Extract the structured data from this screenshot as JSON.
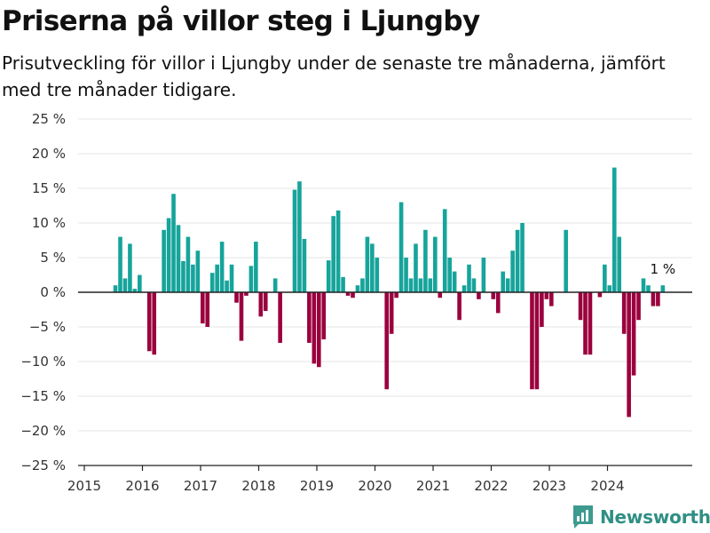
{
  "header": {
    "title": "Priserna på villor steg i Ljungby",
    "subtitle": "Prisutveckling för villor i Ljungby under de senaste tre månaderna, jämfört med tre månader tidigare."
  },
  "brand": {
    "name": "Newsworthy",
    "logo_icon": "bar-chart-logo-icon"
  },
  "chart_data": {
    "type": "bar",
    "unit": "%",
    "y_range": [
      -25,
      25
    ],
    "y_ticks": [
      25,
      20,
      15,
      10,
      5,
      0,
      -5,
      -10,
      -15,
      -20,
      -25
    ],
    "y_tick_labels": [
      "25 %",
      "20 %",
      "15 %",
      "10 %",
      "5 %",
      "0 %",
      "−5 %",
      "−10 %",
      "−15 %",
      "−20 %",
      "−25 %"
    ],
    "x_ticks": [
      "2015",
      "2016",
      "2017",
      "2018",
      "2019",
      "2020",
      "2021",
      "2022",
      "2023",
      "2024"
    ],
    "x_range": [
      "2015-01",
      "2025-08"
    ],
    "grid": "horizontal",
    "colors": {
      "positive": "#16a49b",
      "negative": "#9b003e",
      "zero_line": "#222222",
      "grid": "#e6e6e6"
    },
    "annotation": {
      "text": "1 %",
      "month": "2024-12"
    },
    "months": [
      "2015-07",
      "2015-08",
      "2015-09",
      "2015-10",
      "2015-11",
      "2015-12",
      "2016-01",
      "2016-02",
      "2016-03",
      "2016-04",
      "2016-05",
      "2016-06",
      "2016-07",
      "2016-08",
      "2016-09",
      "2016-10",
      "2016-11",
      "2016-12",
      "2017-01",
      "2017-02",
      "2017-03",
      "2017-04",
      "2017-05",
      "2017-06",
      "2017-07",
      "2017-08",
      "2017-09",
      "2017-10",
      "2017-11",
      "2017-12",
      "2018-01",
      "2018-02",
      "2018-03",
      "2018-04",
      "2018-05",
      "2018-06",
      "2018-07",
      "2018-08",
      "2018-09",
      "2018-10",
      "2018-11",
      "2018-12",
      "2019-01",
      "2019-02",
      "2019-03",
      "2019-04",
      "2019-05",
      "2019-06",
      "2019-07",
      "2019-08",
      "2019-09",
      "2019-10",
      "2019-11",
      "2019-12",
      "2020-01",
      "2020-02",
      "2020-03",
      "2020-04",
      "2020-05",
      "2020-06",
      "2020-07",
      "2020-08",
      "2020-09",
      "2020-10",
      "2020-11",
      "2020-12",
      "2021-01",
      "2021-02",
      "2021-03",
      "2021-04",
      "2021-05",
      "2021-06",
      "2021-07",
      "2021-08",
      "2021-09",
      "2021-10",
      "2021-11",
      "2021-12",
      "2022-01",
      "2022-02",
      "2022-03",
      "2022-04",
      "2022-05",
      "2022-06",
      "2022-07",
      "2022-08",
      "2022-09",
      "2022-10",
      "2022-11",
      "2022-12",
      "2023-01",
      "2023-02",
      "2023-03",
      "2023-04",
      "2023-05",
      "2023-06",
      "2023-07",
      "2023-08",
      "2023-09",
      "2023-10",
      "2023-11",
      "2023-12",
      "2024-01",
      "2024-02",
      "2024-03",
      "2024-04",
      "2024-05",
      "2024-06",
      "2024-07",
      "2024-08",
      "2024-09",
      "2024-10",
      "2024-11",
      "2024-12"
    ],
    "values": [
      1,
      8,
      2,
      7,
      0.5,
      2.5,
      0,
      -8.5,
      -9,
      0,
      9,
      10.7,
      14.2,
      9.7,
      4.5,
      8,
      4,
      6,
      -4.5,
      -5,
      2.8,
      4,
      7.3,
      1.7,
      4,
      -1.5,
      -7,
      -0.5,
      3.8,
      7.3,
      -3.5,
      -2.7,
      0,
      2,
      -7.3,
      0,
      0,
      14.8,
      16,
      7.7,
      -7.3,
      -10.3,
      -10.8,
      -6.8,
      4.6,
      11,
      11.8,
      2.2,
      -0.5,
      -0.8,
      1,
      2,
      8,
      7,
      5,
      0,
      -14,
      -6,
      -0.8,
      13,
      5,
      2,
      7,
      2,
      9,
      2,
      8,
      -0.8,
      12,
      5,
      3,
      -4,
      1,
      4,
      2,
      -1,
      5,
      0,
      -1,
      -3,
      3,
      2,
      6,
      9,
      10,
      0,
      -14,
      -14,
      -5,
      -1,
      -2,
      0,
      0,
      9,
      0,
      0,
      -4,
      -9,
      -9,
      0,
      -0.7,
      4,
      1,
      18,
      8,
      -6,
      -18,
      -12,
      -4,
      2,
      1,
      -2,
      -2,
      1
    ]
  }
}
